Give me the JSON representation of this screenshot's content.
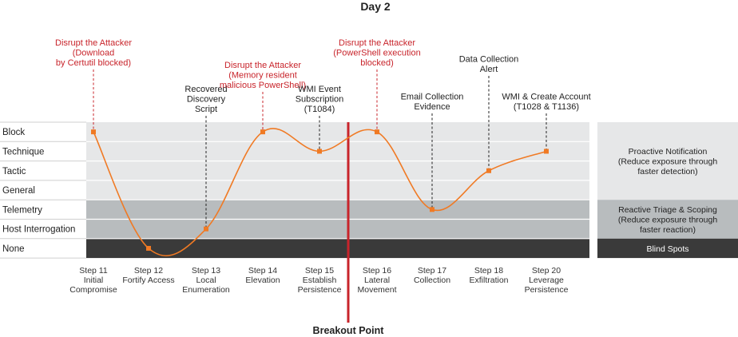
{
  "title": "Day 2",
  "colors": {
    "line": "#f07a24",
    "marker": "#f07a24",
    "red": "#c8242b",
    "band_light": "#e6e7e8",
    "band_mid": "#b8bcbe",
    "band_dark": "#3a3a3a",
    "breakout": "#c8242b"
  },
  "chart_data": {
    "type": "line",
    "title": "Day 2",
    "y_levels": [
      "Block",
      "Technique",
      "Tactic",
      "General",
      "Telemetry",
      "Host Interrogation",
      "None"
    ],
    "categories": [
      {
        "id": "s11",
        "lines": [
          "Step 11",
          "Initial",
          "Compromise"
        ]
      },
      {
        "id": "s12",
        "lines": [
          "Step 12",
          "Fortify Access"
        ]
      },
      {
        "id": "s13",
        "lines": [
          "Step 13",
          "Local",
          "Enumeration"
        ]
      },
      {
        "id": "s14",
        "lines": [
          "Step 14",
          "Elevation"
        ]
      },
      {
        "id": "s15",
        "lines": [
          "Step 15",
          "Establish",
          "Persistence"
        ]
      },
      {
        "id": "s16",
        "lines": [
          "Step 16",
          "Lateral",
          "Movement"
        ]
      },
      {
        "id": "s17",
        "lines": [
          "Step 17",
          "Collection"
        ]
      },
      {
        "id": "s18",
        "lines": [
          "Step 18",
          "Exfiltration"
        ]
      },
      {
        "id": "s20",
        "lines": [
          "Step 20",
          "Leverage",
          "Persistence"
        ]
      }
    ],
    "points": [
      {
        "step": "s11",
        "level": "Block"
      },
      {
        "step": "s12",
        "level": "None"
      },
      {
        "step": "s13",
        "level": "Host Interrogation"
      },
      {
        "step": "s14",
        "level": "Block"
      },
      {
        "step": "s15",
        "level": "Technique"
      },
      {
        "step": "s16",
        "level": "Block"
      },
      {
        "step": "s17",
        "level": "Telemetry"
      },
      {
        "step": "s18",
        "level": "Tactic"
      },
      {
        "step": "s20",
        "level": "Technique"
      }
    ],
    "annotations": [
      {
        "step": "s11",
        "color": "red",
        "lines": [
          "Disrupt the Attacker",
          "(Download",
          "by Certutil blocked)"
        ]
      },
      {
        "step": "s13",
        "color": "dark",
        "lines": [
          "Recovered",
          "Discovery",
          "Script"
        ]
      },
      {
        "step": "s14",
        "color": "red",
        "lines": [
          "Disrupt the Attacker",
          "(Memory resident",
          "malicious PowerShell)"
        ]
      },
      {
        "step": "s15",
        "color": "dark",
        "lines": [
          "WMI Event",
          "Subscription",
          "(T1084)"
        ]
      },
      {
        "step": "s16",
        "color": "red",
        "lines": [
          "Disrupt the Attacker",
          "(PowerShell execution",
          "blocked)"
        ]
      },
      {
        "step": "s17",
        "color": "dark",
        "lines": [
          "Email Collection",
          "Evidence"
        ]
      },
      {
        "step": "s18",
        "color": "dark",
        "lines": [
          "Data Collection",
          "Alert"
        ]
      },
      {
        "step": "s20",
        "color": "dark",
        "lines": [
          "WMI & Create Account",
          "(T1028 & T1136)"
        ]
      }
    ],
    "breakout": {
      "label": "Breakout Point",
      "after_step": "s15"
    },
    "side_panels": [
      {
        "lines": [
          "Proactive Notification",
          "(Reduce exposure through",
          "faster detection)"
        ],
        "levels": [
          "Block",
          "General"
        ],
        "tone": "light"
      },
      {
        "lines": [
          "Reactive Triage & Scoping",
          "(Reduce exposure through",
          "faster reaction)"
        ],
        "levels": [
          "Telemetry",
          "Host Interrogation"
        ],
        "tone": "mid"
      },
      {
        "lines": [
          "Blind Spots"
        ],
        "levels": [
          "None",
          "None"
        ],
        "tone": "dark"
      }
    ]
  }
}
